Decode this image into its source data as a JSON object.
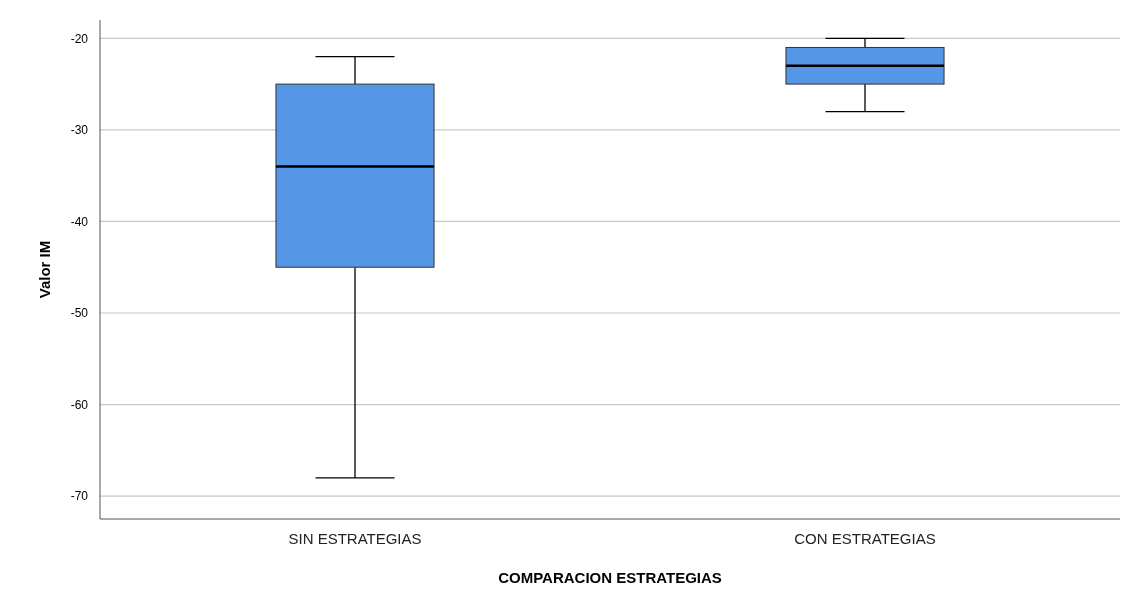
{
  "chart_data": {
    "type": "box",
    "xlabel": "COMPARACION ESTRATEGIAS",
    "ylabel": "Valor IM",
    "categories": [
      "SIN ESTRATEGIAS",
      "CON ESTRATEGIAS"
    ],
    "color": "#5596e6",
    "boxes": [
      {
        "low": -68,
        "q1": -45,
        "median": -34,
        "q3": -25,
        "high": -22
      },
      {
        "low": -28,
        "q1": -25,
        "median": -23,
        "q3": -21,
        "high": -20
      }
    ],
    "ylim": [
      -72.5,
      -18
    ],
    "yticks": [
      -70,
      -60,
      -50,
      -40,
      -30,
      -20
    ],
    "grid": "y"
  }
}
